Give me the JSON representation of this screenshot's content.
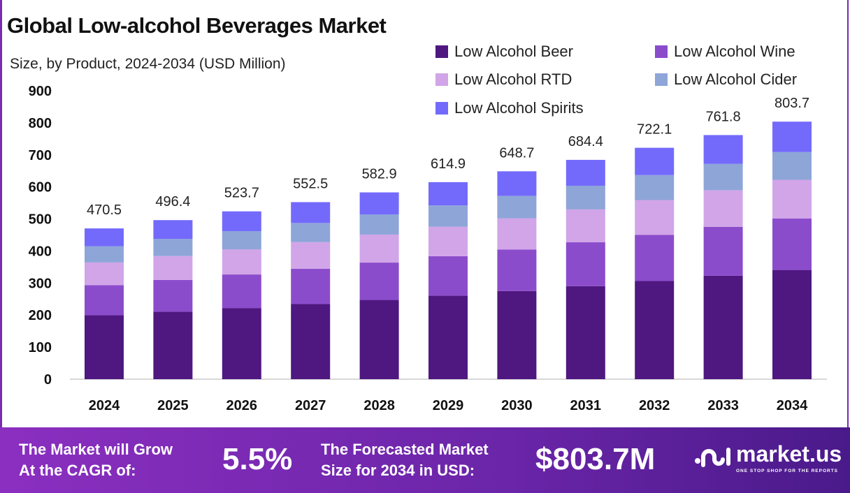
{
  "chart_data": {
    "type": "bar",
    "stacked": true,
    "title": "Global Low-alcohol Beverages Market",
    "subtitle": "Size, by Product, 2024-2034 (USD Million)",
    "categories": [
      "2024",
      "2025",
      "2026",
      "2027",
      "2028",
      "2029",
      "2030",
      "2031",
      "2032",
      "2033",
      "2034"
    ],
    "series": [
      {
        "name": "Low Alcohol Beer",
        "color": "#4f1780",
        "values": [
          199.5,
          210.5,
          222.0,
          234.3,
          247.2,
          260.7,
          275.1,
          290.2,
          306.2,
          323.0,
          340.8
        ]
      },
      {
        "name": "Low Alcohol Wine",
        "color": "#8b4ccc",
        "values": [
          94.1,
          99.3,
          104.7,
          110.5,
          116.6,
          123.0,
          129.7,
          136.9,
          144.4,
          152.4,
          160.7
        ]
      },
      {
        "name": "Low Alcohol RTD",
        "color": "#d1a5e8",
        "values": [
          70.6,
          74.5,
          78.6,
          82.9,
          87.4,
          92.2,
          97.3,
          102.7,
          108.3,
          114.3,
          120.6
        ]
      },
      {
        "name": "Low Alcohol Cider",
        "color": "#8ea5d8",
        "values": [
          50.8,
          53.6,
          56.6,
          59.7,
          63.0,
          66.4,
          70.1,
          73.9,
          78.0,
          82.3,
          86.8
        ]
      },
      {
        "name": "Low Alcohol Spirits",
        "color": "#736afc",
        "values": [
          55.5,
          58.5,
          61.8,
          65.1,
          68.7,
          72.6,
          76.5,
          80.7,
          85.2,
          89.8,
          94.8
        ]
      }
    ],
    "totals": [
      "470.5",
      "496.4",
      "523.7",
      "552.5",
      "582.9",
      "614.9",
      "648.7",
      "684.4",
      "722.1",
      "761.8",
      "803.7"
    ],
    "yticks": [
      "0",
      "100",
      "200",
      "300",
      "400",
      "500",
      "600",
      "700",
      "800",
      "900"
    ],
    "ylim": [
      0,
      900
    ],
    "grid": false,
    "legend_position": "top-right",
    "xlabel": "",
    "ylabel": ""
  },
  "footer": {
    "cagr_label_1": "The Market will Grow",
    "cagr_label_2": "At the CAGR of:",
    "cagr_value": "5.5%",
    "forecast_label_1": "The Forecasted Market",
    "forecast_label_2": "Size for 2034 in USD:",
    "forecast_value": "$803.7M",
    "brand": "market.us",
    "tagline": "ONE STOP SHOP FOR THE REPORTS"
  }
}
